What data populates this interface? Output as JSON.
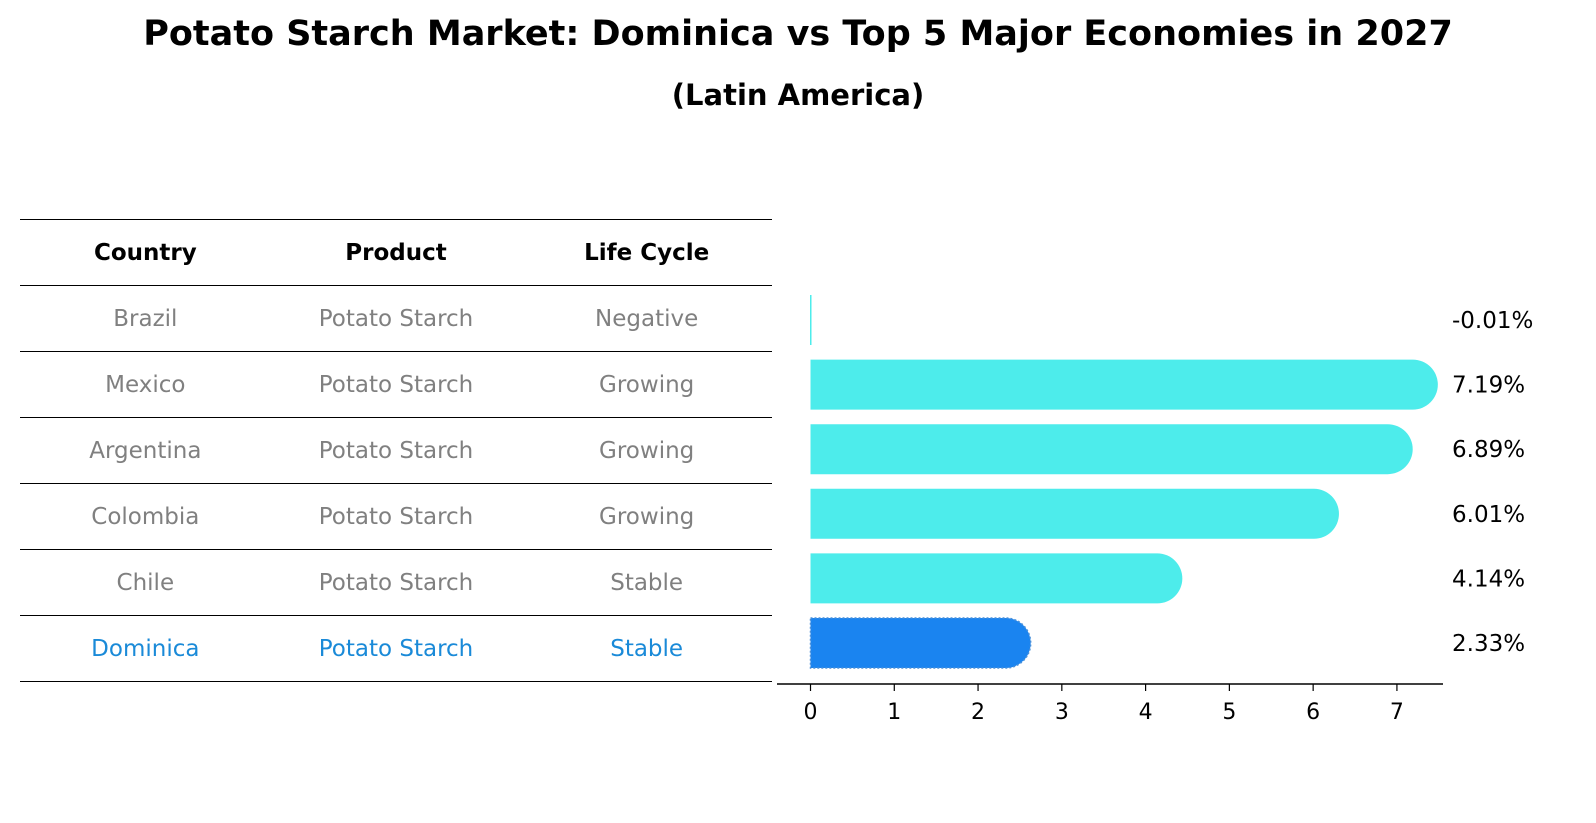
{
  "title": "Potato Starch Market: Dominica vs Top 5 Major Economies in 2027",
  "subtitle": "(Latin America)",
  "table": {
    "headers": [
      "Country",
      "Product",
      "Life Cycle"
    ],
    "rows": [
      [
        "Brazil",
        "Potato Starch",
        "Negative"
      ],
      [
        "Mexico",
        "Potato Starch",
        "Growing"
      ],
      [
        "Argentina",
        "Potato Starch",
        "Growing"
      ],
      [
        "Colombia",
        "Potato Starch",
        "Growing"
      ],
      [
        "Chile",
        "Potato Starch",
        "Stable"
      ],
      [
        "Dominica",
        "Potato Starch",
        "Stable"
      ]
    ],
    "highlight_row": 5,
    "text_color": "#808080",
    "highlight_color": "#1a8ad8"
  },
  "chart_data": {
    "type": "bar",
    "orientation": "horizontal",
    "categories": [
      "Brazil",
      "Mexico",
      "Argentina",
      "Colombia",
      "Chile",
      "Dominica"
    ],
    "values": [
      -0.01,
      7.19,
      6.89,
      6.01,
      4.14,
      2.33
    ],
    "labels": [
      "-0.01%",
      "7.19%",
      "6.89%",
      "6.01%",
      "4.14%",
      "2.33%"
    ],
    "xticks": [
      "0",
      "1",
      "2",
      "3",
      "4",
      "5",
      "6",
      "7"
    ],
    "xlim": [
      -0.4,
      7.55
    ],
    "bar_color": "#4deceb",
    "highlight_color": "#1a84f0",
    "highlight_index": 5,
    "xlabel": "",
    "ylabel": ""
  }
}
